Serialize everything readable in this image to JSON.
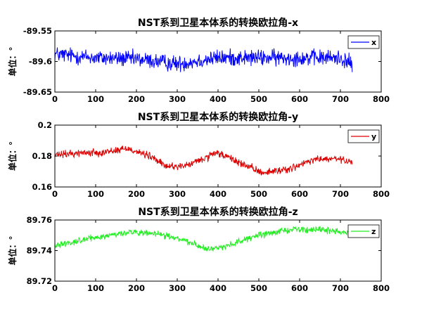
{
  "chart_data": [
    {
      "type": "line",
      "title": "NST系到卫星本体系的转换欧拉角-x",
      "ylabel": "单位：°",
      "xlim": [
        0,
        800
      ],
      "ylim": [
        -89.65,
        -89.55
      ],
      "xticks": [
        "0",
        "100",
        "200",
        "300",
        "400",
        "500",
        "600",
        "700",
        "800"
      ],
      "yticks": [
        "-89.55",
        "-89.6",
        "-89.65"
      ],
      "legend": "x",
      "legend_position": "top-right",
      "color": "#0000ff",
      "n_points": 730,
      "trend_x": [
        0,
        100,
        200,
        300,
        400,
        500,
        600,
        700,
        730
      ],
      "trend_y": [
        -89.588,
        -89.594,
        -89.596,
        -89.604,
        -89.594,
        -89.594,
        -89.594,
        -89.594,
        -89.605
      ],
      "noise_amplitude": 0.012,
      "series": [
        {
          "name": "x"
        }
      ]
    },
    {
      "type": "line",
      "title": "NST系到卫星本体系的转换欧拉角-y",
      "ylabel": "单位：°",
      "xlim": [
        0,
        800
      ],
      "ylim": [
        0.16,
        0.2
      ],
      "xticks": [
        "0",
        "100",
        "200",
        "300",
        "400",
        "500",
        "600",
        "700",
        "800"
      ],
      "yticks": [
        "0.2",
        "0.18",
        "0.16"
      ],
      "legend": "y",
      "legend_position": "top-right",
      "color": "#dd0000",
      "n_points": 730,
      "trend_x": [
        0,
        60,
        120,
        180,
        240,
        270,
        320,
        400,
        450,
        500,
        520,
        580,
        640,
        700,
        730
      ],
      "trend_y": [
        0.1805,
        0.182,
        0.1825,
        0.185,
        0.179,
        0.1735,
        0.1735,
        0.182,
        0.176,
        0.17,
        0.1695,
        0.172,
        0.178,
        0.178,
        0.175
      ],
      "noise_amplitude": 0.0022,
      "series": [
        {
          "name": "y"
        }
      ]
    },
    {
      "type": "line",
      "title": "NST系到卫星本体系的转换欧拉角-z",
      "ylabel": "单位：°",
      "xlim": [
        0,
        800
      ],
      "ylim": [
        89.72,
        89.76
      ],
      "xticks": [
        "0",
        "100",
        "200",
        "300",
        "400",
        "500",
        "600",
        "700",
        "800"
      ],
      "yticks": [
        "89.76",
        "89.74",
        "89.72"
      ],
      "legend": "z",
      "legend_position": "top-right",
      "color": "#22ee22",
      "n_points": 730,
      "trend_x": [
        0,
        100,
        180,
        260,
        320,
        380,
        430,
        500,
        580,
        650,
        730
      ],
      "trend_y": [
        89.7435,
        89.7485,
        89.752,
        89.7505,
        89.7465,
        89.7405,
        89.744,
        89.75,
        89.754,
        89.7535,
        89.752
      ],
      "noise_amplitude": 0.0018,
      "series": [
        {
          "name": "z"
        }
      ]
    }
  ]
}
